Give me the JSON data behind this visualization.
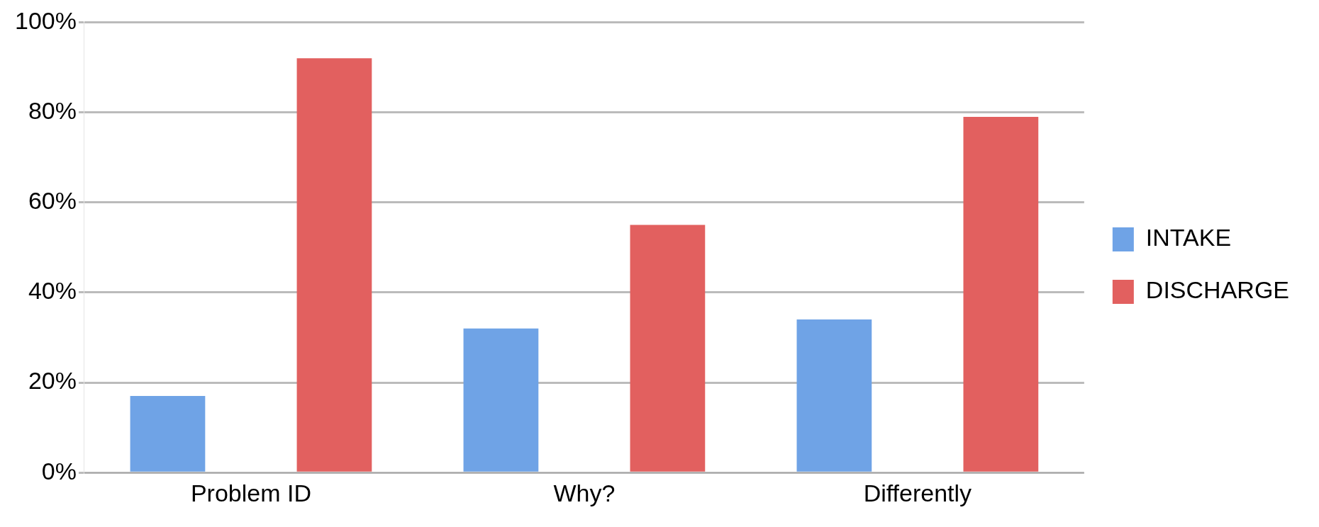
{
  "chart_data": {
    "type": "bar",
    "categories": [
      "Problem ID",
      "Why?",
      "Differently"
    ],
    "series": [
      {
        "name": "INTAKE",
        "color": "#6fa3e6",
        "values": [
          17,
          32,
          34
        ]
      },
      {
        "name": "DISCHARGE",
        "color": "#e2605f",
        "values": [
          92,
          55,
          79
        ]
      }
    ],
    "ylim": [
      0,
      100
    ],
    "yticks": [
      {
        "value": 0,
        "label": "0%"
      },
      {
        "value": 20,
        "label": "20%"
      },
      {
        "value": 40,
        "label": "40%"
      },
      {
        "value": 60,
        "label": "60%"
      },
      {
        "value": 80,
        "label": "80%"
      },
      {
        "value": 100,
        "label": "100%"
      }
    ],
    "grid": "y",
    "legend": "right"
  }
}
